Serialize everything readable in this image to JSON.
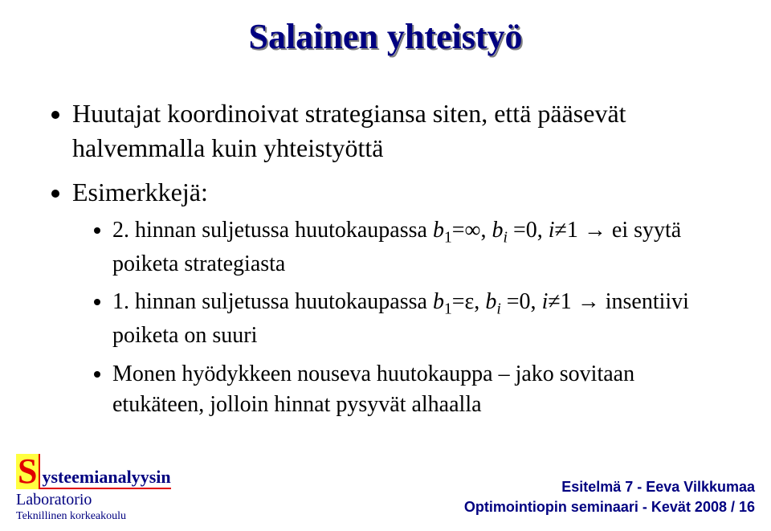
{
  "title": {
    "text": "Salainen yhteistyö",
    "color": "#000080",
    "shadow_color": "#808080",
    "font_size": 44
  },
  "content": {
    "font_size": 32,
    "sub_font_size": 28,
    "bullets": [
      {
        "text": "Huutajat koordinoivat strategiansa siten, että pääsevät halvemmalla kuin yhteistyöttä"
      },
      {
        "text": "Esimerkkejä:",
        "sub": [
          {
            "prefix": "2. hinnan suljetussa huutokaupassa ",
            "math_html": "<span class='math-i'>b</span><sub>1</sub>=∞, <span class='math-i'>b<sub>i</sub></span> =0, <span class='math-i'>i</span>≠1",
            "suffix": " → ei syytä poiketa strategiasta"
          },
          {
            "prefix": "1. hinnan suljetussa huutokaupassa ",
            "math_html": "<span class='math-i'>b</span><sub>1</sub>=ε, <span class='math-i'>b<sub>i</sub></span> =0, <span class='math-i'>i</span>≠1",
            "suffix": " → insentiivi poiketa on suuri"
          },
          {
            "prefix": "Monen hyödykkeen nouseva huutokauppa – jako sovitaan etukäteen, jolloin hinnat pysyvät alhaalla",
            "math_html": "",
            "suffix": ""
          }
        ]
      }
    ]
  },
  "footer": {
    "logo_letter": "S",
    "logo_rest": "ysteemianalyysin",
    "lab": "Laboratorio",
    "uni": "Teknillinen korkeakoulu",
    "right_line1": "Esitelmä 7 - Eeva Vilkkumaa",
    "right_line2": "Optimointiopin seminaari - Kevät 2008 / 16",
    "colors": {
      "brand_red": "#e00000",
      "brand_yellow": "#ffff40",
      "brand_navy": "#000080"
    }
  }
}
